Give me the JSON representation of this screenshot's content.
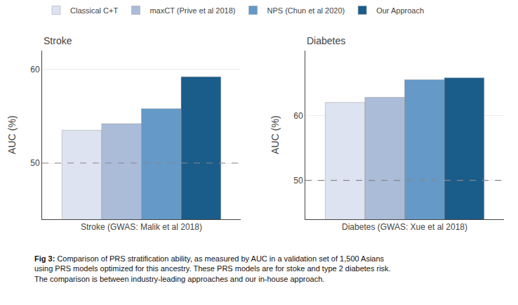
{
  "chart_data": [
    {
      "type": "bar",
      "title": "Stroke",
      "xlabel": "Stroke (GWAS: Malik et al 2018)",
      "ylabel": "AUC (%)",
      "categories": [
        null
      ],
      "series": [
        {
          "name": "Classical C+T",
          "color": "#dde3f0",
          "values": [
            53.5
          ]
        },
        {
          "name": "maxCT (Prive et al 2018)",
          "color": "#aabcd8",
          "values": [
            54.2
          ]
        },
        {
          "name": "NPS (Chun et al 2020)",
          "color": "#6499c8",
          "values": [
            55.8
          ]
        },
        {
          "name": "Our Approach",
          "color": "#1a5c8a",
          "values": [
            59.2
          ]
        }
      ],
      "ylim": [
        44,
        62
      ],
      "yticks": [
        50,
        60
      ],
      "grid": true,
      "legend": "upper left",
      "tick_labels": "y",
      "reference_line": {
        "y": 50,
        "line_style": "dashed",
        "color": "#888888"
      }
    },
    {
      "type": "bar",
      "title": "Diabetes",
      "xlabel": "Diabetes (GWAS: Xue et al 2018)",
      "ylabel": "AUC (%)",
      "categories": [
        null
      ],
      "series": [
        {
          "name": "Classical C+T",
          "color": "#dde3f0",
          "values": [
            62.0
          ]
        },
        {
          "name": "maxCT (Prive et al 2018)",
          "color": "#aabcd8",
          "values": [
            62.8
          ]
        },
        {
          "name": "NPS (Chun et al 2020)",
          "color": "#6499c8",
          "values": [
            65.5
          ]
        },
        {
          "name": "Our Approach",
          "color": "#1a5c8a",
          "values": [
            65.8
          ]
        }
      ],
      "ylim": [
        44,
        70
      ],
      "yticks": [
        50,
        60
      ],
      "grid": true,
      "tick_labels": "y",
      "reference_line": {
        "y": 50,
        "line_style": "dashed",
        "color": "#888888"
      }
    }
  ],
  "caption": [
    {
      "text": "Fig 3:",
      "bold": true
    },
    {
      "text": " Comparison of PRS stratification ability, as measured by AUC in a validation set of 1,500 Asians\nusing PRS models optimized for this ancestry. These PRS models are for stoke and type 2 diabetes risk.\nThe comparison is between industry-leading approaches and our in-house approach."
    }
  ]
}
